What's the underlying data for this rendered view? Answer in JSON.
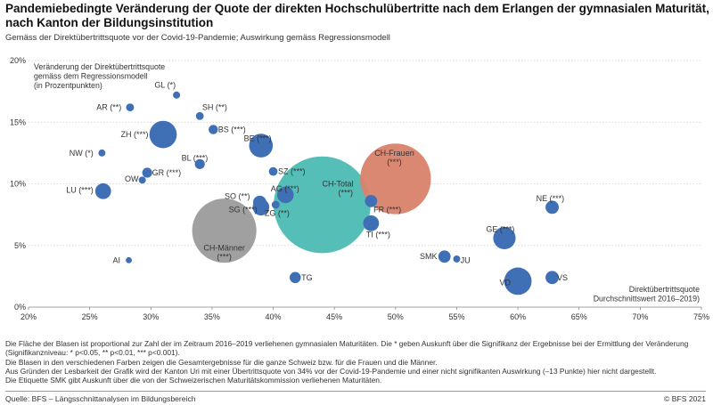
{
  "title": "Pandemiebedingte Veränderung der Quote der direkten Hochschulübertritte nach dem Erlangen der gymnasialen Maturität, nach Kanton der Bildungsinstitution",
  "subtitle": "Gemäss der Direktübertrittsquote vor der Covid-19-Pandemie; Auswirkung gemäss Regressionsmodell",
  "notes": [
    "Die Fläche der Blasen ist proportional zur Zahl der im Zeitraum 2016–2019 verliehenen gymnasialen Maturitäten. Die * geben Auskunft über die Signifikanz der Ergebnisse bei der Ermittlung der Veränderung",
    "(Signifikanzniveau:  * p<0.05, ** p<0.01, *** p<0.001).",
    "Die Blasen in den verschiedenen Farben zeigen die Gesamtergebnisse für die ganze Schweiz bzw. für die Frauen und die Männer.",
    "Aus Gründen der Lesbarkeit der Grafik wird der Kanton Uri mit einer Übertrittsquote von 34% vor der Covid-19-Pandemie und einer nicht signifikanten Auswirkung (–13 Punkte) hier nicht dargestellt.",
    "Die Etiquette SMK gibt Auskunft über die von der Schweizerischen Maturitätskommission verliehenen Maturitäten."
  ],
  "source": "Quelle: BFS – Längsschnittanalysen im Bildungsbereich",
  "copyright": "© BFS 2021",
  "chart_data": {
    "type": "scatter",
    "ylabel_lines": [
      "Veränderung der Direktübertrittsquote",
      "gemäss dem Regressionsmodell",
      "(in Prozentpunkten)"
    ],
    "xlabel_lines": [
      "Direktübertrittsquote",
      "Durchschnittswert 2016–2019)"
    ],
    "xlim": [
      20,
      75
    ],
    "ylim": [
      0,
      20
    ],
    "xticks": [
      20,
      25,
      30,
      35,
      40,
      45,
      50,
      55,
      60,
      65,
      70,
      75
    ],
    "yticks": [
      0,
      5,
      10,
      15,
      20
    ],
    "x_tick_labels": [
      "20%",
      "25%",
      "30%",
      "35%",
      "40%",
      "45%",
      "50%",
      "55%",
      "60%",
      "65%",
      "70%",
      "75%"
    ],
    "y_tick_labels": [
      "0%",
      "5%",
      "10%",
      "15%",
      "20%"
    ],
    "grid": "horizontal",
    "colors": {
      "canton": "#3f6fb4",
      "total": "#4bbbb3",
      "women": "#d9826c",
      "men": "#9b9b9b",
      "grid": "#cfcfcf"
    },
    "points": [
      {
        "label": "GL (*)",
        "x": 32.1,
        "y": 17.2,
        "size": 4,
        "group": "canton",
        "lx": 30.3,
        "ly": 18.0,
        "anchor": "start"
      },
      {
        "label": "AR (**)",
        "x": 28.3,
        "y": 16.2,
        "size": 5,
        "group": "canton",
        "lx": 27.6,
        "ly": 16.2,
        "anchor": "end"
      },
      {
        "label": "SH (**)",
        "x": 34.0,
        "y": 15.5,
        "size": 5,
        "group": "canton",
        "lx": 34.2,
        "ly": 16.2,
        "anchor": "start"
      },
      {
        "label": "BS (***)",
        "x": 35.1,
        "y": 14.4,
        "size": 7,
        "group": "canton",
        "lx": 35.5,
        "ly": 14.4,
        "anchor": "start"
      },
      {
        "label": "ZH (***)",
        "x": 31.0,
        "y": 14.0,
        "size": 60,
        "group": "canton",
        "lx": 29.8,
        "ly": 14.0,
        "anchor": "end"
      },
      {
        "label": "BE (***)",
        "x": 39.0,
        "y": 13.1,
        "size": 45,
        "group": "canton",
        "lx": 37.6,
        "ly": 13.7,
        "anchor": "start"
      },
      {
        "label": "NW (*)",
        "x": 26.0,
        "y": 12.5,
        "size": 4,
        "group": "canton",
        "lx": 25.3,
        "ly": 12.5,
        "anchor": "end"
      },
      {
        "label": "BL (***)",
        "x": 34.0,
        "y": 11.6,
        "size": 8,
        "group": "canton",
        "lx": 32.5,
        "ly": 12.1,
        "anchor": "start"
      },
      {
        "label": "SZ (***)",
        "x": 40.0,
        "y": 11.0,
        "size": 6,
        "group": "canton",
        "lx": 40.4,
        "ly": 11.0,
        "anchor": "start"
      },
      {
        "label": "GR (***)",
        "x": 29.7,
        "y": 10.9,
        "size": 8,
        "group": "canton",
        "lx": 30.1,
        "ly": 10.9,
        "anchor": "start"
      },
      {
        "label": "OW",
        "x": 29.3,
        "y": 10.3,
        "size": 4,
        "group": "canton",
        "lx": 29.0,
        "ly": 10.4,
        "anchor": "end"
      },
      {
        "label": "LU (***)",
        "x": 26.1,
        "y": 9.4,
        "size": 20,
        "group": "canton",
        "lx": 25.3,
        "ly": 9.5,
        "anchor": "end"
      },
      {
        "label": "AG (***)",
        "x": 41.0,
        "y": 9.1,
        "size": 22,
        "group": "canton",
        "lx": 39.8,
        "ly": 9.6,
        "anchor": "start"
      },
      {
        "label": "SO (**)",
        "x": 38.9,
        "y": 8.5,
        "size": 14,
        "group": "canton",
        "lx": 38.1,
        "ly": 9.0,
        "anchor": "end"
      },
      {
        "label": "SG (***)",
        "x": 39.0,
        "y": 8.1,
        "size": 22,
        "group": "canton",
        "lx": 38.7,
        "ly": 7.9,
        "anchor": "end"
      },
      {
        "label": "ZG (**)",
        "x": 40.2,
        "y": 8.3,
        "size": 5,
        "group": "canton",
        "lx": 39.3,
        "ly": 7.6,
        "anchor": "start"
      },
      {
        "label": "FR (***)",
        "x": 48.0,
        "y": 8.6,
        "size": 12,
        "group": "canton",
        "lx": 48.2,
        "ly": 7.9,
        "anchor": "start"
      },
      {
        "label": "TI (***)",
        "x": 48.0,
        "y": 6.8,
        "size": 20,
        "group": "canton",
        "lx": 47.6,
        "ly": 5.9,
        "anchor": "start"
      },
      {
        "label": "NE (***)",
        "x": 62.8,
        "y": 8.1,
        "size": 14,
        "group": "canton",
        "lx": 61.5,
        "ly": 8.8,
        "anchor": "start"
      },
      {
        "label": "GE (***)",
        "x": 58.9,
        "y": 5.6,
        "size": 40,
        "group": "canton",
        "lx": 57.4,
        "ly": 6.3,
        "anchor": "start"
      },
      {
        "label": "AI",
        "x": 28.2,
        "y": 3.8,
        "size": 3,
        "group": "canton",
        "lx": 27.5,
        "ly": 3.8,
        "anchor": "end"
      },
      {
        "label": "SMK",
        "x": 54.0,
        "y": 4.1,
        "size": 12,
        "group": "canton",
        "lx": 53.4,
        "ly": 4.1,
        "anchor": "end"
      },
      {
        "label": "JU",
        "x": 55.0,
        "y": 3.9,
        "size": 4,
        "group": "canton",
        "lx": 55.3,
        "ly": 3.8,
        "anchor": "start"
      },
      {
        "label": "TG",
        "x": 41.8,
        "y": 2.4,
        "size": 10,
        "group": "canton",
        "lx": 42.3,
        "ly": 2.4,
        "anchor": "start"
      },
      {
        "label": "VD",
        "x": 60.0,
        "y": 2.1,
        "size": 60,
        "group": "canton",
        "lx": 58.5,
        "ly": 2.0,
        "anchor": "start"
      },
      {
        "label": "VS",
        "x": 62.8,
        "y": 2.4,
        "size": 14,
        "group": "canton",
        "lx": 63.2,
        "ly": 2.4,
        "anchor": "start"
      },
      {
        "label": "CH-Total",
        "label2": "(***)",
        "x": 44.0,
        "y": 8.3,
        "size": 750,
        "group": "total",
        "lx": 44.0,
        "ly": 10.0,
        "anchor": "start"
      },
      {
        "label": "CH-Frauen",
        "label2": "(***)",
        "x": 50.0,
        "y": 10.4,
        "size": 400,
        "group": "women",
        "lx": 49.9,
        "ly": 12.5,
        "anchor": "middle"
      },
      {
        "label": "CH-Männer",
        "label2": "(***)",
        "x": 36.0,
        "y": 6.2,
        "size": 330,
        "group": "men",
        "lx": 36.0,
        "ly": 4.8,
        "anchor": "middle"
      }
    ]
  }
}
